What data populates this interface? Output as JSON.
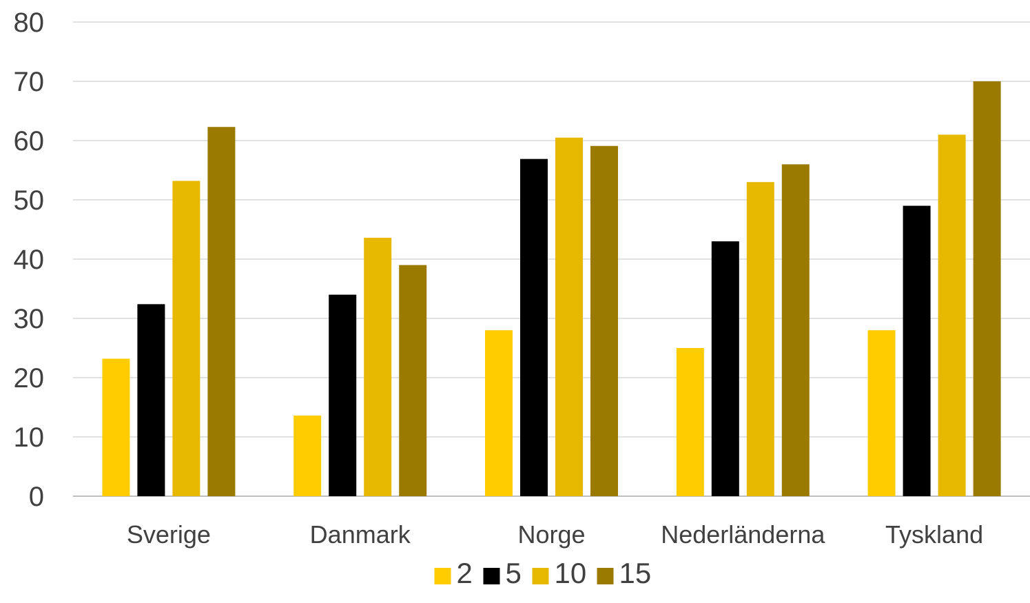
{
  "chart_data": {
    "type": "bar",
    "title": "",
    "xlabel": "",
    "ylabel": "",
    "categories": [
      "Sverige",
      "Danmark",
      "Norge",
      "Nederländerna",
      "Tyskland"
    ],
    "ylim": [
      0,
      80
    ],
    "yticks": [
      0,
      10,
      20,
      30,
      40,
      50,
      60,
      70,
      80
    ],
    "grid": true,
    "legend_position": "bottom",
    "series": [
      {
        "name": "2",
        "color": "#ffcc00",
        "values": [
          23.2,
          13.6,
          28,
          25,
          28
        ]
      },
      {
        "name": "5",
        "color": "#000000",
        "values": [
          32.4,
          34,
          56.9,
          43,
          49
        ]
      },
      {
        "name": "10",
        "color": "#e6b800",
        "values": [
          53.2,
          43.6,
          60.5,
          53,
          61
        ]
      },
      {
        "name": "15",
        "color": "#9a7a00",
        "values": [
          62.3,
          39,
          59.1,
          56,
          70
        ]
      }
    ]
  }
}
